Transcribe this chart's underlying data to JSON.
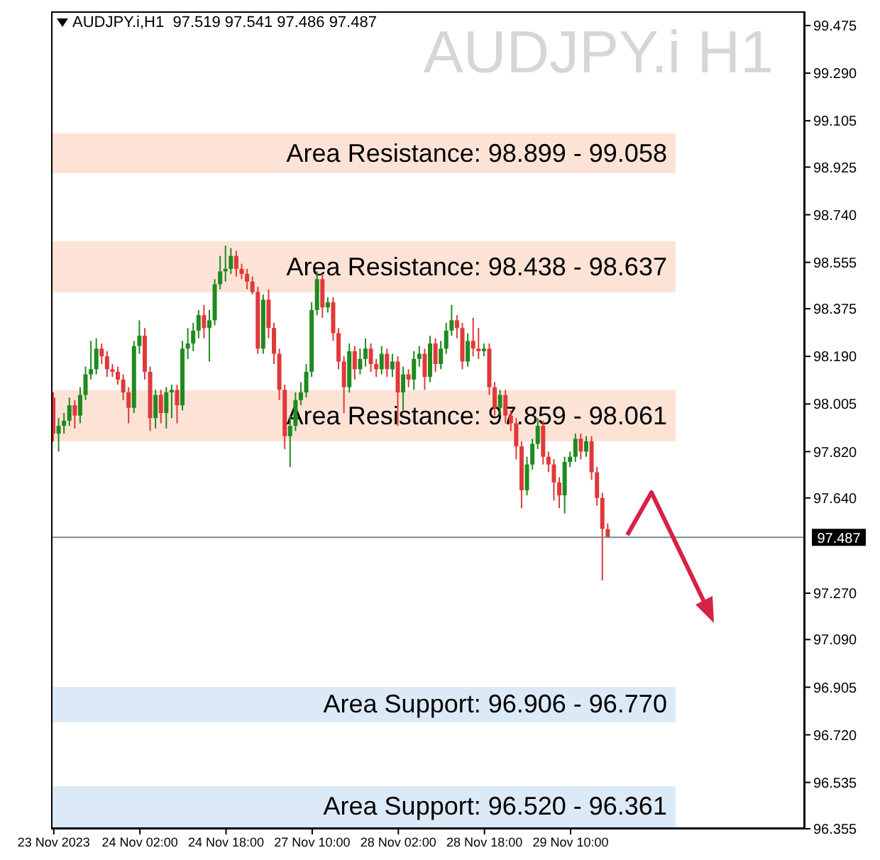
{
  "chart_data": {
    "type": "candlestick",
    "title": "AUDJPY.i H1",
    "subtitle": "AUDJPY.i,H1  97.519 97.541 97.486 97.487",
    "categories": [
      "23 Nov 2023",
      null,
      null,
      null,
      null,
      null,
      null,
      null,
      null,
      null,
      null,
      null,
      null,
      null,
      null,
      null,
      "24 Nov 02:00",
      null,
      null,
      null,
      null,
      null,
      null,
      null,
      null,
      null,
      null,
      null,
      null,
      null,
      null,
      null,
      "24 Nov 18:00",
      null,
      null,
      null,
      null,
      null,
      null,
      null,
      null,
      null,
      null,
      null,
      null,
      null,
      null,
      null,
      "27 Nov 10:00",
      null,
      null,
      null,
      null,
      null,
      null,
      null,
      null,
      null,
      null,
      null,
      null,
      null,
      null,
      null,
      "28 Nov 02:00",
      null,
      null,
      null,
      null,
      null,
      null,
      null,
      null,
      null,
      null,
      null,
      null,
      null,
      null,
      null,
      "28 Nov 18:00",
      null,
      null,
      null,
      null,
      null,
      null,
      null,
      null,
      null,
      null,
      null,
      null,
      null,
      null,
      null,
      "29 Nov 10:00",
      null,
      null,
      null,
      null,
      null,
      null,
      null,
      null,
      null,
      null,
      null,
      null,
      null,
      null,
      null,
      null,
      null,
      null,
      null,
      null,
      null,
      null,
      null,
      null,
      null,
      null,
      null,
      null,
      null,
      null,
      null,
      null,
      null,
      null,
      null,
      null,
      null,
      null,
      null,
      null,
      null,
      null,
      null
    ],
    "ohlc": [
      [
        98.03,
        98.05,
        97.86,
        97.89
      ],
      [
        97.89,
        97.95,
        97.82,
        97.92
      ],
      [
        97.92,
        97.97,
        97.89,
        97.94
      ],
      [
        97.94,
        98.03,
        97.92,
        98.0
      ],
      [
        98.0,
        98.02,
        97.91,
        97.96
      ],
      [
        97.96,
        98.07,
        97.93,
        98.04
      ],
      [
        98.04,
        98.15,
        98.02,
        98.12
      ],
      [
        98.12,
        98.25,
        98.1,
        98.14
      ],
      [
        98.14,
        98.26,
        98.12,
        98.22
      ],
      [
        98.22,
        98.24,
        98.16,
        98.19
      ],
      [
        98.19,
        98.21,
        98.11,
        98.14
      ],
      [
        98.14,
        98.16,
        98.11,
        98.13
      ],
      [
        98.13,
        98.15,
        98.08,
        98.1
      ],
      [
        98.1,
        98.12,
        98.02,
        98.05
      ],
      [
        98.05,
        98.07,
        97.93,
        97.99
      ],
      [
        97.99,
        98.25,
        97.97,
        98.23
      ],
      [
        98.23,
        98.33,
        98.2,
        98.27
      ],
      [
        98.27,
        98.3,
        98.1,
        98.13
      ],
      [
        98.13,
        98.15,
        97.9,
        97.95
      ],
      [
        97.95,
        98.06,
        97.91,
        98.04
      ],
      [
        98.04,
        98.06,
        97.93,
        97.97
      ],
      [
        97.97,
        98.07,
        97.91,
        98.05
      ],
      [
        98.05,
        98.08,
        97.95,
        98.06
      ],
      [
        98.06,
        98.08,
        97.93,
        98.0
      ],
      [
        98.0,
        98.25,
        97.98,
        98.22
      ],
      [
        98.22,
        98.3,
        98.18,
        98.24
      ],
      [
        98.24,
        98.32,
        98.21,
        98.29
      ],
      [
        98.29,
        98.37,
        98.26,
        98.35
      ],
      [
        98.35,
        98.39,
        98.26,
        98.3
      ],
      [
        98.3,
        98.37,
        98.17,
        98.33
      ],
      [
        98.33,
        98.49,
        98.31,
        98.47
      ],
      [
        98.47,
        98.58,
        98.45,
        98.52
      ],
      [
        98.52,
        98.62,
        98.48,
        98.53
      ],
      [
        98.53,
        98.61,
        98.51,
        98.58
      ],
      [
        98.58,
        98.6,
        98.5,
        98.53
      ],
      [
        98.53,
        98.55,
        98.49,
        98.51
      ],
      [
        98.51,
        98.53,
        98.45,
        98.48
      ],
      [
        98.48,
        98.5,
        98.43,
        98.44
      ],
      [
        98.44,
        98.46,
        98.2,
        98.22
      ],
      [
        98.22,
        98.43,
        98.2,
        98.41
      ],
      [
        98.41,
        98.45,
        98.26,
        98.3
      ],
      [
        98.3,
        98.32,
        98.16,
        98.2
      ],
      [
        98.2,
        98.22,
        98.02,
        98.06
      ],
      [
        98.06,
        98.08,
        97.83,
        97.88
      ],
      [
        97.88,
        97.96,
        97.76,
        97.92
      ],
      [
        97.92,
        98.05,
        97.9,
        98.02
      ],
      [
        98.02,
        98.09,
        98.0,
        98.05
      ],
      [
        98.05,
        98.16,
        98.03,
        98.13
      ],
      [
        98.13,
        98.4,
        98.11,
        98.37
      ],
      [
        98.37,
        98.52,
        98.35,
        98.49
      ],
      [
        98.49,
        98.51,
        98.34,
        98.38
      ],
      [
        98.38,
        98.42,
        98.36,
        98.4
      ],
      [
        98.4,
        98.42,
        98.25,
        98.28
      ],
      [
        98.28,
        98.3,
        98.14,
        98.17
      ],
      [
        98.17,
        98.19,
        97.97,
        98.07
      ],
      [
        98.07,
        98.24,
        98.05,
        98.21
      ],
      [
        98.21,
        98.23,
        98.1,
        98.14
      ],
      [
        98.14,
        98.22,
        98.12,
        98.18
      ],
      [
        98.18,
        98.26,
        98.15,
        98.22
      ],
      [
        98.22,
        98.24,
        98.13,
        98.16
      ],
      [
        98.16,
        98.18,
        98.11,
        98.14
      ],
      [
        98.14,
        98.23,
        98.12,
        98.2
      ],
      [
        98.2,
        98.22,
        98.11,
        98.14
      ],
      [
        98.14,
        98.2,
        98.11,
        98.17
      ],
      [
        98.17,
        98.19,
        97.92,
        98.05
      ],
      [
        98.05,
        98.15,
        97.98,
        98.12
      ],
      [
        98.12,
        98.14,
        98.07,
        98.1
      ],
      [
        98.1,
        98.21,
        98.06,
        98.18
      ],
      [
        98.18,
        98.23,
        98.15,
        98.2
      ],
      [
        98.2,
        98.22,
        98.06,
        98.11
      ],
      [
        98.11,
        98.27,
        98.09,
        98.24
      ],
      [
        98.24,
        98.26,
        98.13,
        98.16
      ],
      [
        98.16,
        98.25,
        98.14,
        98.22
      ],
      [
        98.22,
        98.32,
        98.2,
        98.29
      ],
      [
        98.29,
        98.39,
        98.27,
        98.33
      ],
      [
        98.33,
        98.35,
        98.26,
        98.3
      ],
      [
        98.3,
        98.32,
        98.14,
        98.17
      ],
      [
        98.17,
        98.28,
        98.15,
        98.25
      ],
      [
        98.25,
        98.34,
        98.19,
        98.22
      ],
      [
        98.22,
        98.3,
        98.18,
        98.21
      ],
      [
        98.21,
        98.24,
        98.19,
        98.22
      ],
      [
        98.22,
        98.24,
        98.04,
        98.07
      ],
      [
        98.07,
        98.09,
        97.96,
        97.99
      ],
      [
        97.99,
        98.06,
        97.96,
        98.04
      ],
      [
        98.04,
        98.06,
        97.93,
        97.96
      ],
      [
        97.96,
        97.98,
        97.9,
        97.93
      ],
      [
        97.93,
        97.95,
        97.79,
        97.84
      ],
      [
        97.84,
        97.86,
        97.6,
        97.67
      ],
      [
        97.67,
        97.8,
        97.65,
        97.77
      ],
      [
        97.77,
        97.87,
        97.75,
        97.85
      ],
      [
        97.85,
        97.95,
        97.83,
        97.92
      ],
      [
        97.92,
        97.94,
        97.77,
        97.8
      ],
      [
        97.8,
        97.82,
        97.74,
        97.77
      ],
      [
        97.77,
        97.79,
        97.63,
        97.7
      ],
      [
        97.7,
        97.72,
        97.6,
        97.65
      ],
      [
        97.65,
        97.8,
        97.58,
        97.78
      ],
      [
        97.78,
        97.82,
        97.76,
        97.8
      ],
      [
        97.8,
        97.89,
        97.78,
        97.87
      ],
      [
        97.87,
        97.89,
        97.79,
        97.82
      ],
      [
        97.82,
        97.88,
        97.8,
        97.86
      ],
      [
        97.86,
        97.88,
        97.71,
        97.74
      ],
      [
        97.74,
        97.76,
        97.61,
        97.64
      ],
      [
        97.64,
        97.66,
        97.32,
        97.52
      ],
      [
        97.519,
        97.541,
        97.486,
        97.487
      ],
      null,
      null,
      null,
      null,
      null,
      null,
      null,
      null,
      null,
      null,
      null,
      null,
      null,
      null,
      null,
      null,
      null,
      null,
      null,
      null,
      null,
      null,
      null,
      null,
      null,
      null,
      null,
      null,
      null,
      null,
      null,
      null,
      null,
      null,
      null,
      null
    ],
    "colors": [
      "#e0393a",
      "#1f8a1f",
      "#1f8a1f",
      "#1f8a1f",
      "#e0393a",
      "#1f8a1f",
      "#1f8a1f",
      "#1f8a1f",
      "#1f8a1f",
      "#e0393a",
      "#e0393a",
      "#e0393a",
      "#e0393a",
      "#e0393a",
      "#e0393a",
      "#1f8a1f",
      "#1f8a1f",
      "#e0393a",
      "#e0393a",
      "#1f8a1f",
      "#e0393a",
      "#1f8a1f",
      "#1f8a1f",
      "#e0393a",
      "#1f8a1f",
      "#1f8a1f",
      "#1f8a1f",
      "#1f8a1f",
      "#e0393a",
      "#1f8a1f",
      "#1f8a1f",
      "#1f8a1f",
      "#1f8a1f",
      "#1f8a1f",
      "#e0393a",
      "#e0393a",
      "#e0393a",
      "#e0393a",
      "#e0393a",
      "#1f8a1f",
      "#e0393a",
      "#e0393a",
      "#e0393a",
      "#e0393a",
      "#1f8a1f",
      "#1f8a1f",
      "#1f8a1f",
      "#1f8a1f",
      "#1f8a1f",
      "#1f8a1f",
      "#e0393a",
      "#1f8a1f",
      "#e0393a",
      "#e0393a",
      "#e0393a",
      "#1f8a1f",
      "#e0393a",
      "#1f8a1f",
      "#1f8a1f",
      "#e0393a",
      "#e0393a",
      "#1f8a1f",
      "#e0393a",
      "#1f8a1f",
      "#e0393a",
      "#1f8a1f",
      "#e0393a",
      "#1f8a1f",
      "#1f8a1f",
      "#e0393a",
      "#1f8a1f",
      "#e0393a",
      "#1f8a1f",
      "#1f8a1f",
      "#1f8a1f",
      "#e0393a",
      "#e0393a",
      "#1f8a1f",
      "#e0393a",
      "#e0393a",
      "#1f8a1f",
      "#e0393a",
      "#e0393a",
      "#1f8a1f",
      "#e0393a",
      "#e0393a",
      "#e0393a",
      "#e0393a",
      "#1f8a1f",
      "#1f8a1f",
      "#1f8a1f",
      "#e0393a",
      "#e0393a",
      "#e0393a",
      "#e0393a",
      "#1f8a1f",
      "#1f8a1f",
      "#1f8a1f",
      "#e0393a",
      "#1f8a1f",
      "#e0393a",
      "#e0393a",
      "#e0393a",
      "#e0393a",
      null,
      null,
      null,
      null,
      null,
      null,
      null,
      null,
      null,
      null,
      null,
      null,
      null,
      null,
      null,
      null,
      null,
      null,
      null,
      null,
      null,
      null,
      null,
      null,
      null,
      null,
      null,
      null,
      null,
      null,
      null,
      null,
      null,
      null,
      null,
      null
    ],
    "ylim": [
      96.355,
      99.53
    ],
    "yticks": [
      96.355,
      96.535,
      {
        "value": 96.72,
        "label": "96.720"
      },
      96.905,
      {
        "value": 97.09,
        "label": "97.090"
      },
      {
        "value": 97.27,
        "label": "97.270"
      },
      {
        "value": 97.64,
        "label": "97.640"
      },
      {
        "value": 97.82,
        "label": "97.820"
      },
      98.005,
      {
        "value": 98.19,
        "label": "98.190"
      },
      98.375,
      98.555,
      {
        "value": 98.74,
        "label": "98.740"
      },
      98.925,
      99.105,
      {
        "value": 99.29,
        "label": "99.290"
      },
      99.475
    ],
    "bands": [
      {
        "axis": "y",
        "from": 98.899,
        "to": 99.058,
        "label": "Area Resistance:  98.899 - 99.058",
        "color": "#fde3d6"
      },
      {
        "axis": "y",
        "from": 98.438,
        "to": 98.637,
        "label": "Area Resistance: 98.438 - 98.637",
        "color": "#fde3d6"
      },
      {
        "axis": "y",
        "from": 97.859,
        "to": 98.061,
        "label": "Area Resistance: 97.859 - 98.061",
        "color": "#fde3d6"
      },
      {
        "axis": "y",
        "from": 96.77,
        "to": 96.906,
        "label": "Area Support: 96.906 - 96.770",
        "color": "#dceaf8"
      },
      {
        "axis": "y",
        "from": 96.361,
        "to": 96.52,
        "label": "Area Support: 96.520 - 96.361",
        "color": "#dceaf8"
      }
    ],
    "ref_lines": [
      {
        "axis": "y",
        "value": 97.487,
        "label": "97.487",
        "color": "#7a8a90"
      }
    ]
  }
}
